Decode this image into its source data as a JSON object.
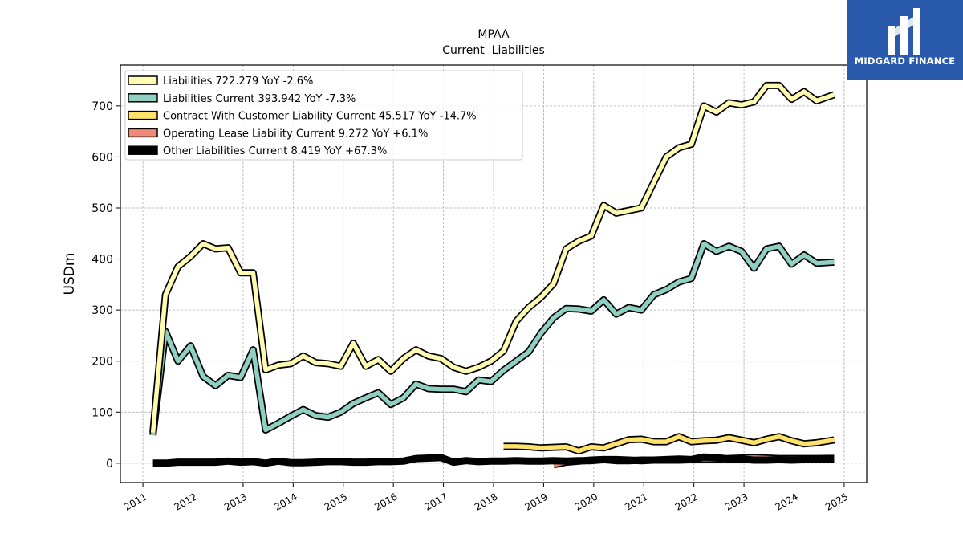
{
  "brand": {
    "name": "MIDGARD FINANCE",
    "color": "#2a5aab",
    "icon": "midgard-logo-icon"
  },
  "chart_data": {
    "type": "line",
    "title": "MPAA",
    "subtitle": "Current  Liabilities",
    "ylabel": "USDm",
    "xlabel": "",
    "ylim": [
      -38,
      780
    ],
    "xlim": [
      2010.55,
      2025.45
    ],
    "yticks": [
      0,
      100,
      200,
      300,
      400,
      500,
      600,
      700
    ],
    "xticks": [
      2011,
      2012,
      2013,
      2014,
      2015,
      2016,
      2017,
      2018,
      2019,
      2020,
      2021,
      2022,
      2023,
      2024,
      2025
    ],
    "grid": true,
    "legend_position": "top-left",
    "series": [
      {
        "name": "Liabilities  722.279 YoY -2.6%",
        "color": "#fffbb0",
        "x": [
          2011.2,
          2011.45,
          2011.7,
          2011.95,
          2012.2,
          2012.45,
          2012.7,
          2012.95,
          2013.2,
          2013.45,
          2013.7,
          2013.95,
          2014.2,
          2014.45,
          2014.7,
          2014.95,
          2015.2,
          2015.45,
          2015.7,
          2015.95,
          2016.2,
          2016.45,
          2016.7,
          2016.95,
          2017.2,
          2017.45,
          2017.7,
          2017.95,
          2018.2,
          2018.45,
          2018.7,
          2018.95,
          2019.2,
          2019.45,
          2019.7,
          2019.95,
          2020.2,
          2020.45,
          2020.7,
          2020.95,
          2021.2,
          2021.45,
          2021.7,
          2021.95,
          2022.2,
          2022.45,
          2022.7,
          2022.95,
          2023.2,
          2023.45,
          2023.7,
          2023.95,
          2024.2,
          2024.45,
          2024.8
        ],
        "values": [
          60,
          330,
          385,
          405,
          430,
          420,
          422,
          373,
          373,
          183,
          192,
          195,
          210,
          197,
          195,
          190,
          235,
          190,
          203,
          180,
          205,
          222,
          210,
          205,
          188,
          180,
          188,
          200,
          220,
          278,
          305,
          325,
          352,
          420,
          435,
          445,
          505,
          490,
          495,
          500,
          550,
          600,
          618,
          625,
          700,
          688,
          706,
          702,
          708,
          740,
          740,
          713,
          728,
          710,
          722
        ]
      },
      {
        "name": "Liabilities Current  393.942 YoY -7.3%",
        "color": "#8fd0c2",
        "x": [
          2011.2,
          2011.45,
          2011.7,
          2011.95,
          2012.2,
          2012.45,
          2012.7,
          2012.95,
          2013.2,
          2013.45,
          2013.7,
          2013.95,
          2014.2,
          2014.45,
          2014.7,
          2014.95,
          2015.2,
          2015.45,
          2015.7,
          2015.95,
          2016.2,
          2016.45,
          2016.7,
          2016.95,
          2017.2,
          2017.45,
          2017.7,
          2017.95,
          2018.2,
          2018.45,
          2018.7,
          2018.95,
          2019.2,
          2019.45,
          2019.7,
          2019.95,
          2020.2,
          2020.45,
          2020.7,
          2020.95,
          2021.2,
          2021.45,
          2021.7,
          2021.95,
          2022.2,
          2022.45,
          2022.7,
          2022.95,
          2023.2,
          2023.45,
          2023.7,
          2023.95,
          2024.2,
          2024.45,
          2024.8
        ],
        "values": [
          55,
          258,
          200,
          230,
          170,
          152,
          172,
          168,
          222,
          65,
          78,
          92,
          105,
          93,
          90,
          100,
          117,
          128,
          138,
          115,
          128,
          155,
          146,
          145,
          145,
          140,
          163,
          160,
          182,
          200,
          218,
          255,
          285,
          303,
          302,
          298,
          320,
          292,
          305,
          300,
          330,
          340,
          355,
          362,
          430,
          415,
          425,
          415,
          382,
          420,
          425,
          390,
          408,
          392,
          394
        ]
      },
      {
        "name": "Contract With Customer Liability Current  45.517 YoY -14.7%",
        "color": "#ffe26a",
        "x": [
          2018.2,
          2018.45,
          2018.7,
          2018.95,
          2019.2,
          2019.45,
          2019.7,
          2019.95,
          2020.2,
          2020.45,
          2020.7,
          2020.95,
          2021.2,
          2021.45,
          2021.7,
          2021.95,
          2022.2,
          2022.45,
          2022.7,
          2022.95,
          2023.2,
          2023.45,
          2023.7,
          2023.95,
          2024.2,
          2024.45,
          2024.8
        ],
        "values": [
          33,
          33,
          32,
          30,
          31,
          32,
          24,
          32,
          30,
          38,
          46,
          47,
          42,
          42,
          52,
          42,
          44,
          45,
          50,
          45,
          40,
          47,
          52,
          44,
          38,
          40,
          45.5
        ]
      },
      {
        "name": "Operating Lease Liability Current  9.272 YoY +6.1%",
        "color": "#ef8a78",
        "x": [
          2019.2,
          2019.45,
          2019.7,
          2019.95,
          2020.2,
          2020.45,
          2020.7,
          2020.95,
          2021.2,
          2021.45,
          2021.7,
          2021.95,
          2022.2,
          2022.45,
          2022.7,
          2022.95,
          2023.2,
          2023.45,
          2023.7,
          2023.95,
          2024.2,
          2024.45,
          2024.8
        ],
        "values": [
          -3,
          2,
          4,
          6,
          7,
          5,
          5,
          6,
          6,
          7,
          8,
          7,
          8,
          8,
          9,
          10,
          11,
          10,
          9,
          9,
          9,
          9,
          9.3
        ]
      },
      {
        "name": "Other Liabilities Current  8.419 YoY +67.3%",
        "color": "#000000",
        "x": [
          2011.2,
          2011.45,
          2011.7,
          2011.95,
          2012.2,
          2012.45,
          2012.7,
          2012.95,
          2013.2,
          2013.45,
          2013.7,
          2013.95,
          2014.2,
          2014.45,
          2014.7,
          2014.95,
          2015.2,
          2015.45,
          2015.7,
          2015.95,
          2016.2,
          2016.45,
          2016.7,
          2016.95,
          2017.2,
          2017.45,
          2017.7,
          2017.95,
          2018.2,
          2018.45,
          2018.7,
          2018.95,
          2019.2,
          2019.45,
          2019.7,
          2019.95,
          2020.2,
          2020.45,
          2020.7,
          2020.95,
          2021.2,
          2021.45,
          2021.7,
          2021.95,
          2022.2,
          2022.45,
          2022.7,
          2022.95,
          2023.2,
          2023.45,
          2023.7,
          2023.95,
          2024.2,
          2024.45,
          2024.8
        ],
        "values": [
          0,
          0,
          2,
          2,
          2,
          2,
          4,
          2,
          3,
          0,
          4,
          1,
          1,
          2,
          3,
          3,
          2,
          2,
          3,
          3,
          4,
          9,
          10,
          11,
          2,
          5,
          3,
          4,
          4,
          5,
          4,
          4,
          5,
          4,
          5,
          5,
          7,
          7,
          6,
          5,
          6,
          6,
          6,
          7,
          12,
          11,
          8,
          8,
          6,
          6,
          7,
          6,
          7,
          8,
          8.4
        ]
      }
    ]
  }
}
